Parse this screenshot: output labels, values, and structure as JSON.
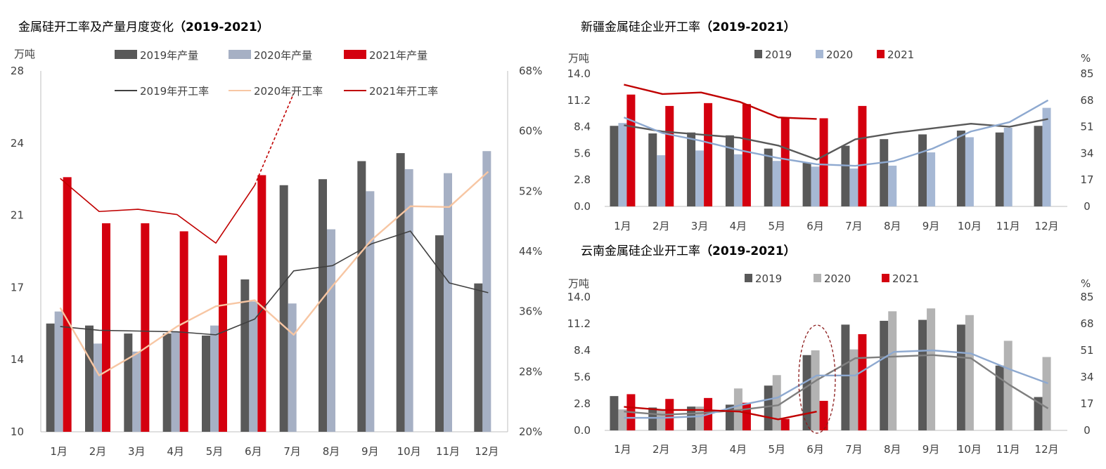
{
  "colors": {
    "y2019": "#595959",
    "y2020_main": "#A6B0C4",
    "y2021": "#D4000F",
    "rate2019": "#404040",
    "rate2020_main": "#F7C6A3",
    "rate2021": "#C00000",
    "y2020_xj": "#A6B8D4",
    "rate2020_xj": "#8EA9D0",
    "rate2019_xj": "#595959",
    "rate2021_xj": "#C00000",
    "y2020_yn": "#B3B3B3",
    "rate2019_yn": "#7F7F7F",
    "rate2020_yn": "#8EA9D0",
    "rate2021_yn": "#C00000",
    "annotation": "#8B1A1A"
  },
  "chart_data": [
    {
      "type": "bar",
      "title": "金属硅开工率及产量月度变化",
      "title_years": "（2019-2021）",
      "y_unit": "万吨",
      "y2_unit": "",
      "categories": [
        "1月",
        "2月",
        "3月",
        "4月",
        "5月",
        "6月",
        "7月",
        "8月",
        "9月",
        "10月",
        "11月",
        "12月"
      ],
      "ylim": [
        10,
        28
      ],
      "yticks": [
        "10",
        "14",
        "17",
        "21",
        "24",
        "28"
      ],
      "y2lim": [
        20,
        68
      ],
      "y2ticks": [
        "20%",
        "28%",
        "36%",
        "44%",
        "52%",
        "60%",
        "68%"
      ],
      "legend": [
        "2019年产量",
        "2020年产量",
        "2021年产量",
        "2019年开工率",
        "2020年开工率",
        "2021年开工率"
      ],
      "bars": [
        {
          "name": "2019年产量",
          "values": [
            15.4,
            15.3,
            14.9,
            14.9,
            14.8,
            17.6,
            22.3,
            22.6,
            23.5,
            23.9,
            19.8,
            17.4
          ]
        },
        {
          "name": "2020年产量",
          "values": [
            16.0,
            14.4,
            14.0,
            15.0,
            15.3,
            16.5,
            16.4,
            20.1,
            22.0,
            23.1,
            22.9,
            24.0
          ]
        },
        {
          "name": "2021年产量",
          "values": [
            22.7,
            20.4,
            20.4,
            20.0,
            18.8,
            22.8,
            null,
            null,
            null,
            null,
            null,
            null
          ]
        }
      ],
      "lines": [
        {
          "name": "2019年开工率",
          "values": [
            34.0,
            33.5,
            33.4,
            33.3,
            32.9,
            35.0,
            41.4,
            42.1,
            45.0,
            46.7,
            39.8,
            38.5
          ]
        },
        {
          "name": "2020年开工率",
          "values": [
            36.5,
            27.5,
            30.5,
            34.0,
            36.7,
            37.5,
            32.9,
            39.4,
            45.5,
            50.0,
            49.9,
            54.6
          ]
        },
        {
          "name": "2021年开工率",
          "values": [
            53.7,
            49.3,
            49.6,
            48.9,
            45.1,
            52.8,
            null,
            null,
            null,
            null,
            null,
            null
          ]
        }
      ],
      "dashed_extension": {
        "from_month": "6月",
        "to_month": "7月",
        "to_rate": 65.0
      }
    },
    {
      "type": "bar",
      "title": "新疆金属硅企业开工率",
      "title_years": "（2019-2021）",
      "y_unit": "万吨",
      "y2_unit": "%",
      "categories": [
        "1月",
        "2月",
        "3月",
        "4月",
        "5月",
        "6月",
        "7月",
        "8月",
        "9月",
        "10月",
        "11月",
        "12月"
      ],
      "ylim": [
        0,
        14
      ],
      "yticks": [
        "0.0",
        "2.8",
        "5.6",
        "8.4",
        "11.2",
        "14.0"
      ],
      "y2lim": [
        0,
        85
      ],
      "y2ticks": [
        "0",
        "17",
        "34",
        "51",
        "68",
        "85"
      ],
      "legend": [
        "2019",
        "2020",
        "2021"
      ],
      "bars": [
        {
          "name": "2019",
          "values": [
            8.5,
            7.7,
            7.8,
            7.5,
            6.1,
            4.6,
            6.4,
            7.1,
            7.6,
            8.0,
            7.8,
            8.5
          ]
        },
        {
          "name": "2020",
          "values": [
            8.8,
            5.4,
            5.9,
            5.5,
            4.8,
            4.2,
            4.0,
            4.3,
            5.7,
            7.3,
            8.3,
            10.4
          ]
        },
        {
          "name": "2021",
          "values": [
            11.8,
            10.6,
            10.9,
            10.8,
            9.4,
            9.3,
            10.6,
            null,
            null,
            null,
            null,
            null
          ]
        }
      ],
      "lines": [
        {
          "name": "2019",
          "values": [
            52,
            48,
            46,
            44,
            39,
            30,
            43,
            47,
            50,
            53,
            51,
            56
          ]
        },
        {
          "name": "2020",
          "values": [
            57,
            47,
            42,
            36,
            31,
            27,
            26,
            29,
            37,
            48,
            54,
            68
          ]
        },
        {
          "name": "2021",
          "values": [
            78,
            72,
            73,
            67,
            57,
            56,
            null,
            null,
            null,
            null,
            null,
            null
          ]
        }
      ]
    },
    {
      "type": "bar",
      "title": "云南金属硅企业开工率",
      "title_years": "（2019-2021）",
      "y_unit": "万吨",
      "y2_unit": "%",
      "categories": [
        "1月",
        "2月",
        "3月",
        "4月",
        "5月",
        "6月",
        "7月",
        "8月",
        "9月",
        "10月",
        "11月",
        "12月"
      ],
      "ylim": [
        0,
        14
      ],
      "yticks": [
        "0.0",
        "2.8",
        "5.6",
        "8.4",
        "11.2",
        "14.0"
      ],
      "y2lim": [
        0,
        85
      ],
      "y2ticks": [
        "0",
        "17",
        "34",
        "51",
        "68",
        "85"
      ],
      "legend": [
        "2019",
        "2020",
        "2021"
      ],
      "bars": [
        {
          "name": "2019",
          "values": [
            3.6,
            2.4,
            2.5,
            2.7,
            4.7,
            7.9,
            11.1,
            11.5,
            11.6,
            11.1,
            6.8,
            3.5
          ]
        },
        {
          "name": "2020",
          "values": [
            2.2,
            2.1,
            2.5,
            4.4,
            5.8,
            8.4,
            8.5,
            12.5,
            12.8,
            12.1,
            9.4,
            7.7
          ]
        },
        {
          "name": "2021",
          "values": [
            3.8,
            3.3,
            3.4,
            2.9,
            1.2,
            3.1,
            10.1,
            null,
            null,
            null,
            null,
            null
          ]
        }
      ],
      "lines": [
        {
          "name": "2019",
          "values": [
            12,
            10,
            11,
            13,
            16,
            32,
            46,
            47,
            48,
            46,
            29,
            14
          ]
        },
        {
          "name": "2020",
          "values": [
            8,
            8,
            9,
            16,
            21,
            35,
            35,
            50,
            51,
            49,
            39,
            30
          ]
        },
        {
          "name": "2021",
          "values": [
            15,
            13,
            13,
            12,
            7,
            12,
            null,
            null,
            null,
            null,
            null,
            null
          ]
        }
      ]
    }
  ]
}
